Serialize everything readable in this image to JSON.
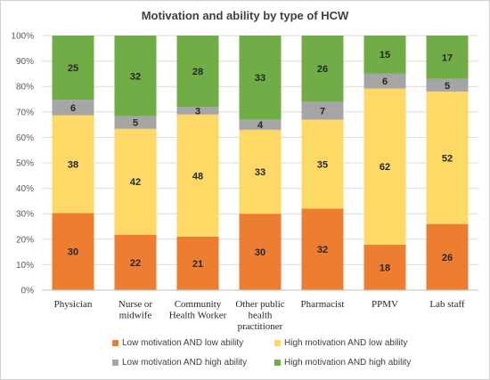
{
  "chart_data": {
    "type": "bar",
    "stacked": true,
    "title": "Motivation and ability by type of HCW",
    "categories": [
      "Physician",
      "Nurse or midwife",
      "Community Health Worker",
      "Other public health practitioner",
      "Pharmacist",
      "PPMV",
      "Lab staff"
    ],
    "category_lines": [
      [
        "Physician"
      ],
      [
        "Nurse or",
        "midwife"
      ],
      [
        "Community",
        "Health Worker"
      ],
      [
        "Other public",
        "health",
        "practitioner"
      ],
      [
        "Pharmacist"
      ],
      [
        "PPMV"
      ],
      [
        "Lab staff"
      ]
    ],
    "series": [
      {
        "name": "Low motivation AND low ability",
        "color": "#ED7D31",
        "values": [
          30,
          22,
          21,
          30,
          32,
          18,
          26
        ]
      },
      {
        "name": "High motivation AND low ability",
        "color": "#FFD966",
        "values": [
          38,
          42,
          48,
          33,
          35,
          62,
          52
        ]
      },
      {
        "name": "Low motivation AND high ability",
        "color": "#A5A5A5",
        "values": [
          6,
          5,
          3,
          4,
          7,
          6,
          5
        ]
      },
      {
        "name": "High motivation AND high ability",
        "color": "#70AD47",
        "values": [
          25,
          32,
          28,
          33,
          26,
          15,
          17
        ]
      }
    ],
    "y_ticks": [
      "0%",
      "10%",
      "20%",
      "30%",
      "40%",
      "50%",
      "60%",
      "70%",
      "80%",
      "90%",
      "100%"
    ],
    "ylim": [
      0,
      100
    ],
    "percent_stacked": true,
    "grid": true,
    "legend_position": "bottom"
  }
}
